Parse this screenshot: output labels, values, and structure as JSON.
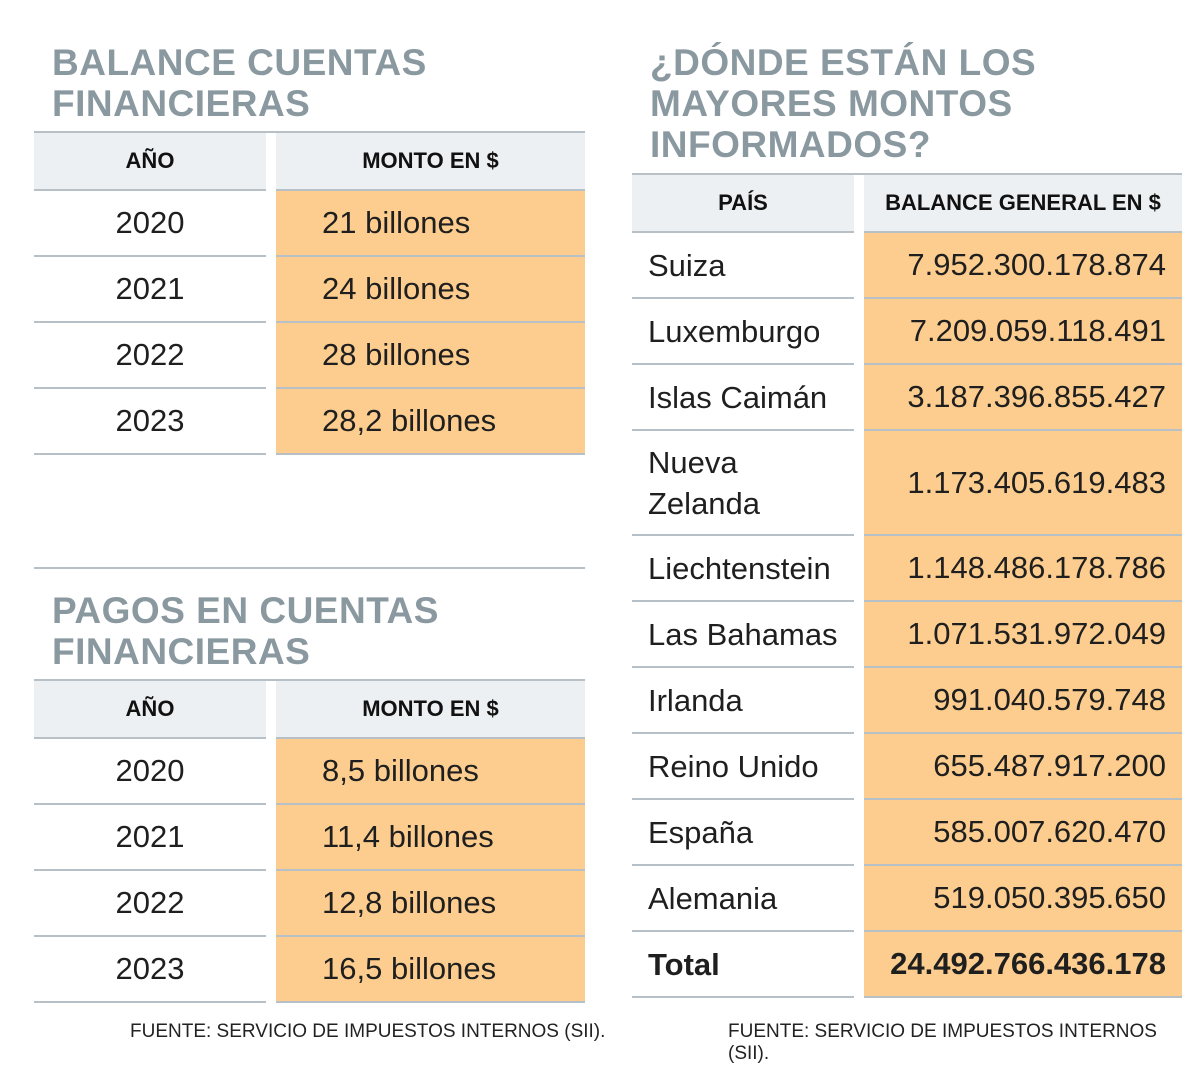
{
  "balance": {
    "title": "BALANCE CUENTAS\nFINANCIERAS",
    "headers": [
      "AÑO",
      "MONTO EN $"
    ],
    "rows": [
      {
        "year": "2020",
        "amount": "21 billones"
      },
      {
        "year": "2021",
        "amount": "24 billones"
      },
      {
        "year": "2022",
        "amount": "28 billones"
      },
      {
        "year": "2023",
        "amount": "28,2 billones"
      }
    ]
  },
  "pagos": {
    "title": "PAGOS EN CUENTAS\nFINANCIERAS",
    "headers": [
      "AÑO",
      "MONTO EN $"
    ],
    "rows": [
      {
        "year": "2020",
        "amount": "8,5 billones"
      },
      {
        "year": "2021",
        "amount": "11,4 billones"
      },
      {
        "year": "2022",
        "amount": "12,8 billones"
      },
      {
        "year": "2023",
        "amount": "16,5 billones"
      }
    ],
    "source": "FUENTE: SERVICIO DE IMPUESTOS INTERNOS (SII)."
  },
  "paises": {
    "title": "¿DÓNDE ESTÁN LOS\nMAYORES MONTOS\nINFORMADOS?",
    "headers": [
      "PAÍS",
      "BALANCE GENERAL EN $"
    ],
    "rows": [
      {
        "country": "Suiza",
        "amount": "7.952.300.178.874"
      },
      {
        "country": "Luxemburgo",
        "amount": "7.209.059.118.491"
      },
      {
        "country": "Islas Caimán",
        "amount": "3.187.396.855.427"
      },
      {
        "country": "Nueva\nZelanda",
        "amount": "1.173.405.619.483"
      },
      {
        "country": "Liechtenstein",
        "amount": "1.148.486.178.786"
      },
      {
        "country": "Las Bahamas",
        "amount": "1.071.531.972.049"
      },
      {
        "country": "Irlanda",
        "amount": "991.040.579.748"
      },
      {
        "country": "Reino Unido",
        "amount": "655.487.917.200"
      },
      {
        "country": "España",
        "amount": "585.007.620.470"
      },
      {
        "country": "Alemania",
        "amount": "519.050.395.650"
      }
    ],
    "total": {
      "label": "Total",
      "amount": "24.492.766.436.178"
    },
    "source": "FUENTE: SERVICIO DE IMPUESTOS INTERNOS (SII)."
  },
  "colors": {
    "title": "#8a98a0",
    "highlight": "#fccd8e",
    "header_bg": "#edf0f2"
  }
}
